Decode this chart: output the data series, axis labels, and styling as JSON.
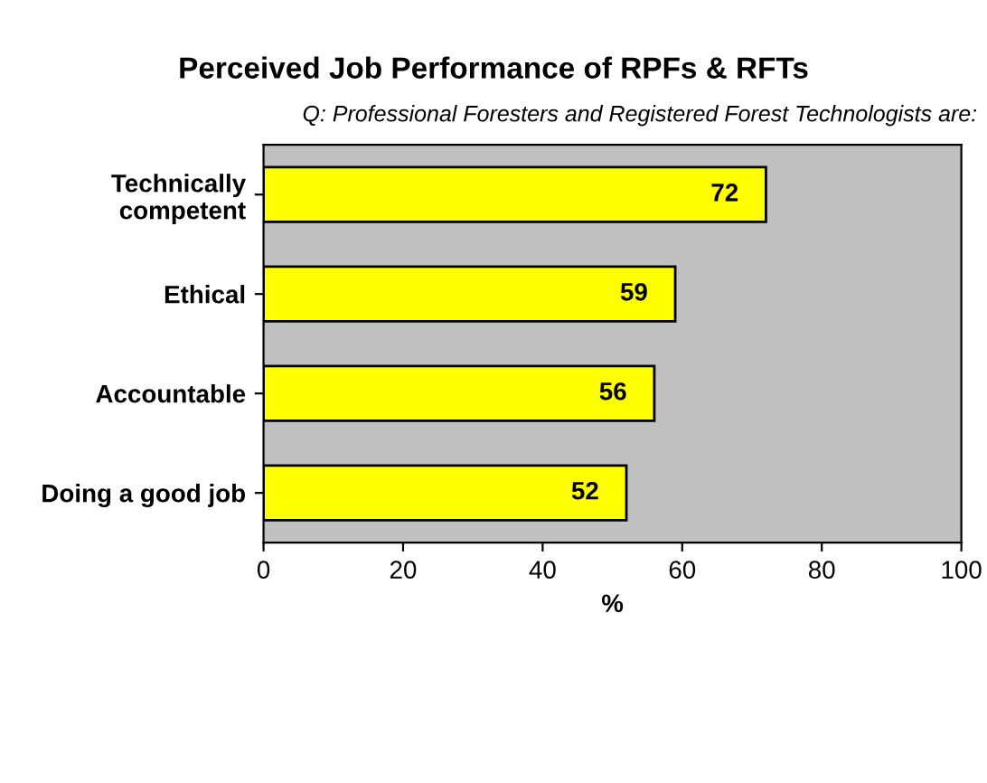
{
  "chart_data": {
    "type": "bar",
    "orientation": "horizontal",
    "title": "Perceived Job Performance of RPFs & RFTs",
    "subtitle": "Q: Professional Foresters and Registered Forest Technologists are:",
    "categories": [
      "Technically\ncompetent",
      "Ethical",
      "Accountable",
      "Doing a good job"
    ],
    "values": [
      72,
      59,
      56,
      52
    ],
    "color": "#ffff00",
    "data_labels": true,
    "xlim": [
      0,
      100
    ],
    "xticks": [
      0,
      20,
      40,
      60,
      80,
      100
    ],
    "xlabel": "%",
    "grid": false,
    "legend": false
  }
}
